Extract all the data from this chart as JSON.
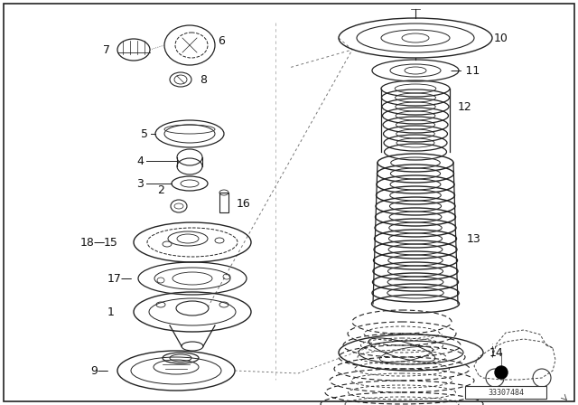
{
  "background_color": "#ffffff",
  "border_color": "#555555",
  "part_number_text": "33307484",
  "line_color": "#222222",
  "fig_width": 6.4,
  "fig_height": 4.48,
  "dpi": 100
}
